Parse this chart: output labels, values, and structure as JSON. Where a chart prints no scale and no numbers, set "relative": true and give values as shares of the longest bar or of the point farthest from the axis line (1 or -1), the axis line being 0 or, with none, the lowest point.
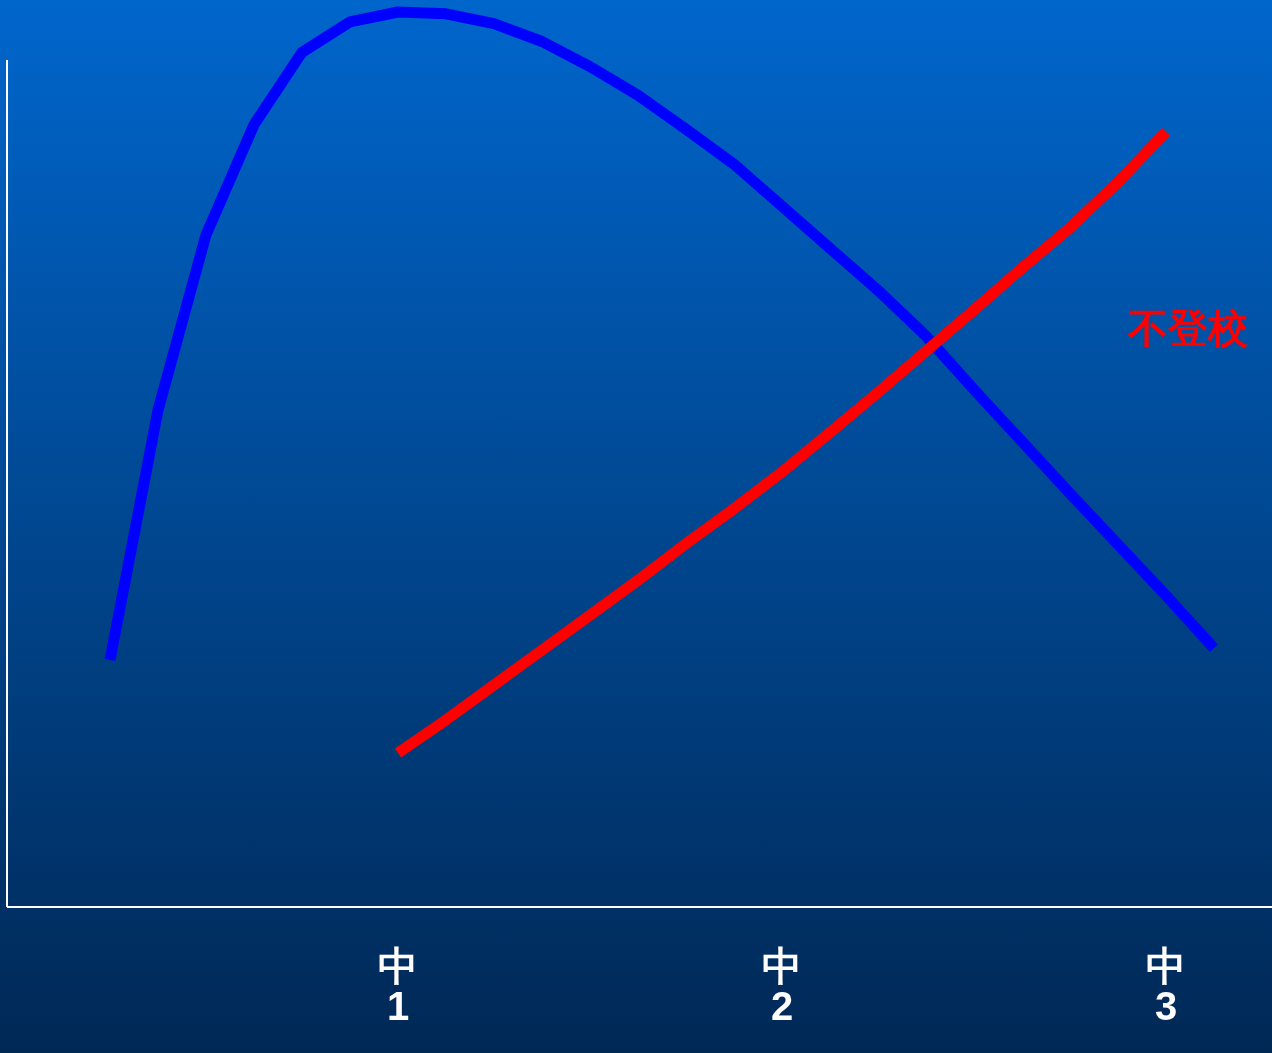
{
  "chart_data": {
    "type": "line",
    "relative": true,
    "categories": [
      null,
      null,
      null,
      null,
      null,
      null,
      null,
      null,
      "中1",
      null,
      null,
      null,
      null,
      null,
      null,
      null,
      "中2",
      null,
      null,
      null,
      null,
      null,
      null,
      null,
      "中3",
      null,
      null
    ],
    "marker": "none",
    "line_style": "solid",
    "series": [
      {
        "color": "#0000ff",
        "values": [
          null,
          null,
          0.276,
          0.555,
          0.751,
          0.874,
          0.955,
          0.989,
          1.0,
          0.998,
          0.987,
          0.967,
          0.939,
          0.907,
          0.869,
          0.83,
          0.783,
          0.736,
          0.689,
          0.638,
          0.578,
          0.52,
          0.462,
          0.405,
          0.348,
          0.289,
          null
        ]
      },
      {
        "name": "不登校",
        "color": "#ff0000",
        "values": [
          null,
          null,
          null,
          null,
          null,
          null,
          null,
          null,
          0.172,
          0.209,
          0.248,
          0.287,
          0.326,
          0.365,
          0.406,
          0.445,
          0.486,
          0.53,
          0.575,
          0.621,
          0.667,
          0.714,
          0.759,
          0.81,
          0.866,
          null,
          null
        ]
      }
    ]
  }
}
